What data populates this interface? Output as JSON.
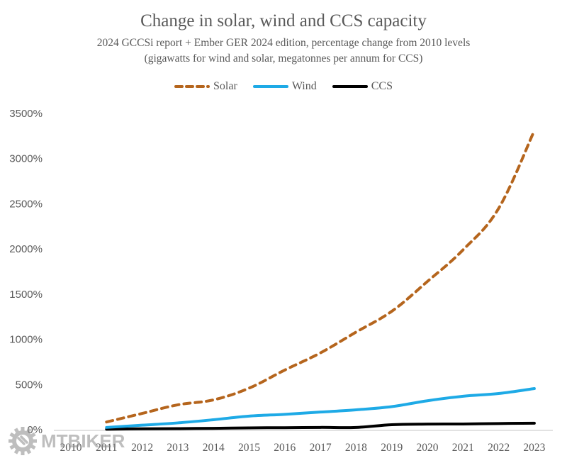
{
  "chart_data": {
    "type": "line",
    "title": "Change in solar, wind and CCS capacity",
    "subtitle_lines": [
      "2024 GCCSi report + Ember GER 2024 edition, percentage change from 2010 levels",
      "(gigawatts for wind and solar, megatonnes per annum for CCS)"
    ],
    "xlabel": "",
    "ylabel": "",
    "categories": [
      "2010",
      "2011",
      "2012",
      "2013",
      "2014",
      "2015",
      "2016",
      "2017",
      "2018",
      "2019",
      "2020",
      "2021",
      "2022",
      "2023"
    ],
    "y_ticks": [
      "0%",
      "500%",
      "1000%",
      "1500%",
      "2000%",
      "2500%",
      "3000%",
      "3500%"
    ],
    "ylim": [
      0,
      3500
    ],
    "y_tick_step": 500,
    "grid": false,
    "legend_position": "top-center",
    "series": [
      {
        "name": "Solar",
        "color": "#B5651D",
        "style": "dashed",
        "values": [
          null,
          85,
          180,
          275,
          330,
          460,
          660,
          850,
          1080,
          1310,
          1640,
          1990,
          2450,
          3310
        ]
      },
      {
        "name": "Wind",
        "color": "#1EAAE6",
        "style": "solid",
        "values": [
          null,
          25,
          50,
          75,
          110,
          150,
          170,
          195,
          220,
          255,
          320,
          370,
          400,
          455
        ]
      },
      {
        "name": "CCS",
        "color": "#000000",
        "style": "solid",
        "values": [
          null,
          5,
          10,
          12,
          15,
          20,
          22,
          25,
          25,
          55,
          62,
          63,
          68,
          72
        ]
      }
    ]
  },
  "watermark": {
    "text": "MTBIKER",
    "icon": "gear-logo-icon"
  }
}
